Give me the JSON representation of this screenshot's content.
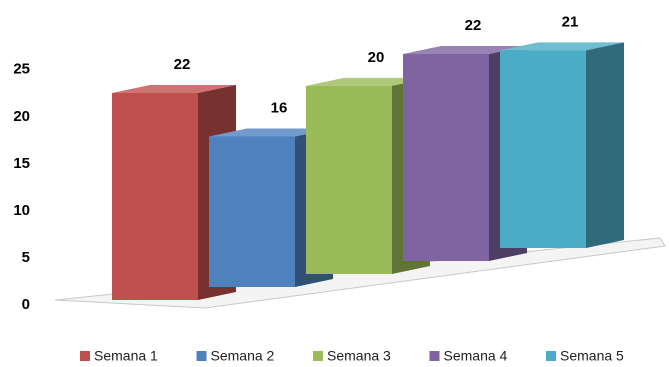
{
  "chart_data": {
    "type": "bar3d",
    "series": [
      {
        "name": "Semana 1",
        "color": "#c0504d",
        "values": [
          22
        ]
      },
      {
        "name": "Semana 2",
        "color": "#4f81bd",
        "values": [
          16
        ]
      },
      {
        "name": "Semana 3",
        "color": "#9bbb59",
        "values": [
          20
        ]
      },
      {
        "name": "Semana 4",
        "color": "#8064a2",
        "values": [
          22
        ]
      },
      {
        "name": "Semana 5",
        "color": "#4bacc6",
        "values": [
          21
        ]
      }
    ],
    "ylim": [
      0,
      25
    ],
    "yticks": [
      0,
      5,
      10,
      15,
      20,
      25
    ],
    "legend": "bottom"
  }
}
